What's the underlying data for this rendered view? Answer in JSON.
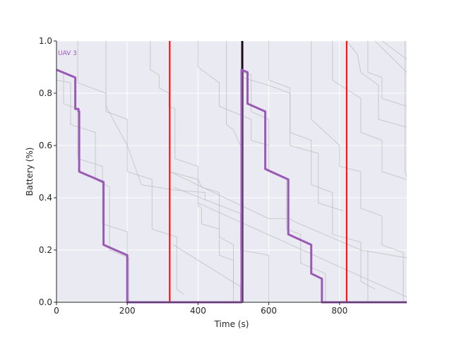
{
  "chart_data": {
    "type": "line",
    "title": "",
    "xlabel": "Time (s)",
    "ylabel": "Battery (%)",
    "xlim": [
      0,
      990
    ],
    "ylim": [
      0,
      1.0
    ],
    "xticks": [
      0,
      200,
      400,
      600,
      800
    ],
    "yticks": [
      0.0,
      0.2,
      0.4,
      0.6,
      0.8,
      1.0
    ],
    "grid": true,
    "colors": {
      "background": "#eaeaf2",
      "grid": "#ffffff",
      "highlight": "#9b59b6",
      "background_series": "#bdbdbd",
      "event_line": "#ff0000",
      "current_time_line": "#1a0a1a"
    },
    "highlight_series": {
      "name": "UAV 3",
      "points": [
        [
          0,
          0.89
        ],
        [
          53,
          0.86
        ],
        [
          53,
          0.74
        ],
        [
          62,
          0.74
        ],
        [
          62,
          0.73
        ],
        [
          64,
          0.73
        ],
        [
          64,
          0.5
        ],
        [
          133,
          0.46
        ],
        [
          133,
          0.22
        ],
        [
          200,
          0.18
        ],
        [
          200,
          0.0
        ],
        [
          523,
          0.0
        ],
        [
          523,
          0.89
        ],
        [
          540,
          0.88
        ],
        [
          540,
          0.76
        ],
        [
          590,
          0.73
        ],
        [
          590,
          0.51
        ],
        [
          655,
          0.47
        ],
        [
          655,
          0.26
        ],
        [
          720,
          0.22
        ],
        [
          720,
          0.11
        ],
        [
          750,
          0.09
        ],
        [
          750,
          0.0
        ],
        [
          990,
          0.0
        ]
      ]
    },
    "background_series": [
      {
        "points": [
          [
            0,
            0.89
          ],
          [
            20,
            0.88
          ],
          [
            20,
            0.76
          ],
          [
            60,
            0.74
          ],
          [
            60,
            0.55
          ],
          [
            130,
            0.52
          ],
          [
            130,
            0.3
          ],
          [
            200,
            0.27
          ],
          [
            200,
            0.0
          ]
        ]
      },
      {
        "points": [
          [
            0,
            0.85
          ],
          [
            40,
            0.84
          ],
          [
            40,
            0.68
          ],
          [
            110,
            0.65
          ],
          [
            110,
            0.47
          ],
          [
            150,
            0.44
          ],
          [
            150,
            0.2
          ],
          [
            205,
            0.17
          ],
          [
            205,
            0.0
          ]
        ]
      },
      {
        "points": [
          [
            60,
            1.0
          ],
          [
            60,
            0.84
          ],
          [
            140,
            0.8
          ],
          [
            140,
            0.73
          ],
          [
            200,
            0.7
          ],
          [
            200,
            0.5
          ],
          [
            270,
            0.47
          ],
          [
            270,
            0.28
          ],
          [
            340,
            0.25
          ],
          [
            340,
            0.05
          ],
          [
            360,
            0.03
          ]
        ]
      },
      {
        "points": [
          [
            140,
            1.0
          ],
          [
            140,
            0.75
          ],
          [
            200,
            0.6
          ],
          [
            240,
            0.45
          ],
          [
            330,
            0.43
          ],
          [
            420,
            0.42
          ],
          [
            420,
            0.39
          ]
        ]
      },
      {
        "points": [
          [
            265,
            1.0
          ],
          [
            265,
            0.89
          ],
          [
            290,
            0.87
          ],
          [
            290,
            0.82
          ],
          [
            318,
            0.8
          ],
          [
            318,
            0.75
          ],
          [
            335,
            0.74
          ],
          [
            335,
            0.55
          ],
          [
            400,
            0.52
          ],
          [
            400,
            0.37
          ],
          [
            410,
            0.36
          ],
          [
            410,
            0.3
          ],
          [
            460,
            0.28
          ],
          [
            460,
            0.18
          ],
          [
            500,
            0.16
          ],
          [
            500,
            0.05
          ]
        ]
      },
      {
        "points": [
          [
            320,
            0.79
          ],
          [
            320,
            0.5
          ],
          [
            400,
            0.47
          ],
          [
            410,
            0.44
          ],
          [
            460,
            0.42
          ],
          [
            460,
            0.25
          ],
          [
            500,
            0.22
          ],
          [
            500,
            0.0
          ]
        ]
      },
      {
        "points": [
          [
            320,
            0.5
          ],
          [
            600,
            0.32
          ],
          [
            660,
            0.32
          ],
          [
            670,
            0.31
          ],
          [
            860,
            0.2
          ],
          [
            990,
            0.17
          ]
        ]
      },
      {
        "points": [
          [
            330,
            0.44
          ],
          [
            520,
            0.34
          ],
          [
            520,
            0.2
          ],
          [
            600,
            0.18
          ],
          [
            600,
            0.0
          ]
        ]
      },
      {
        "points": [
          [
            400,
            0.38
          ],
          [
            990,
            0.02
          ]
        ]
      },
      {
        "points": [
          [
            330,
            0.22
          ],
          [
            520,
            0.06
          ],
          [
            520,
            0.0
          ]
        ]
      },
      {
        "points": [
          [
            400,
            1.0
          ],
          [
            400,
            0.9
          ],
          [
            420,
            0.88
          ],
          [
            460,
            0.84
          ],
          [
            460,
            0.75
          ],
          [
            550,
            0.7
          ],
          [
            550,
            0.62
          ],
          [
            600,
            0.6
          ]
        ]
      },
      {
        "points": [
          [
            480,
            1.0
          ],
          [
            480,
            0.68
          ],
          [
            500,
            0.66
          ],
          [
            520,
            0.6
          ]
        ]
      },
      {
        "points": [
          [
            525,
            1.0
          ],
          [
            525,
            0.88
          ],
          [
            550,
            0.87
          ],
          [
            550,
            0.73
          ],
          [
            600,
            0.7
          ],
          [
            600,
            0.5
          ],
          [
            650,
            0.47
          ],
          [
            650,
            0.28
          ],
          [
            690,
            0.26
          ],
          [
            690,
            0.15
          ],
          [
            760,
            0.11
          ],
          [
            760,
            0.0
          ]
        ]
      },
      {
        "points": [
          [
            525,
            0.86
          ],
          [
            600,
            0.83
          ],
          [
            660,
            0.8
          ],
          [
            660,
            0.65
          ],
          [
            720,
            0.62
          ],
          [
            720,
            0.45
          ],
          [
            780,
            0.42
          ],
          [
            780,
            0.26
          ],
          [
            860,
            0.23
          ],
          [
            860,
            0.08
          ],
          [
            900,
            0.05
          ]
        ]
      },
      {
        "points": [
          [
            600,
            1.0
          ],
          [
            600,
            0.85
          ],
          [
            660,
            0.82
          ],
          [
            660,
            0.6
          ],
          [
            740,
            0.57
          ],
          [
            740,
            0.38
          ],
          [
            810,
            0.35
          ]
        ]
      },
      {
        "points": [
          [
            720,
            1.0
          ],
          [
            720,
            0.7
          ],
          [
            800,
            0.6
          ],
          [
            800,
            0.52
          ],
          [
            860,
            0.5
          ],
          [
            860,
            0.36
          ],
          [
            920,
            0.33
          ],
          [
            920,
            0.22
          ],
          [
            980,
            0.19
          ],
          [
            980,
            0.0
          ]
        ]
      },
      {
        "points": [
          [
            780,
            1.0
          ],
          [
            780,
            0.85
          ],
          [
            860,
            0.78
          ],
          [
            860,
            0.65
          ],
          [
            920,
            0.62
          ],
          [
            920,
            0.5
          ],
          [
            990,
            0.47
          ]
        ]
      },
      {
        "points": [
          [
            820,
            1.0
          ],
          [
            850,
            0.95
          ],
          [
            860,
            0.88
          ],
          [
            910,
            0.83
          ],
          [
            910,
            0.7
          ],
          [
            990,
            0.67
          ]
        ]
      },
      {
        "points": [
          [
            880,
            1.0
          ],
          [
            880,
            0.88
          ],
          [
            920,
            0.86
          ],
          [
            920,
            0.78
          ],
          [
            990,
            0.75
          ]
        ]
      },
      {
        "points": [
          [
            900,
            1.0
          ],
          [
            990,
            0.88
          ]
        ]
      },
      {
        "points": [
          [
            920,
            1.0
          ],
          [
            990,
            0.93
          ]
        ]
      },
      {
        "points": [
          [
            985,
            1.0
          ],
          [
            985,
            0.5
          ],
          [
            990,
            0.48
          ]
        ]
      },
      {
        "points": [
          [
            880,
            0.2
          ],
          [
            880,
            0.0
          ]
        ]
      }
    ],
    "event_lines": [
      320,
      820
    ],
    "current_time": 525
  }
}
